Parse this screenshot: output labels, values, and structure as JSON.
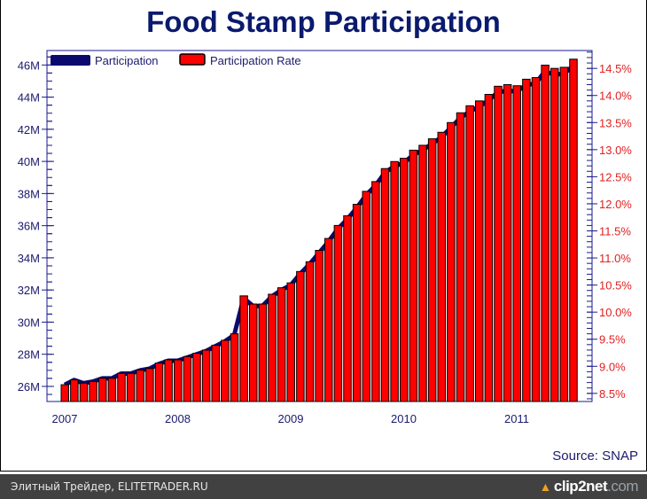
{
  "chart_data": {
    "type": "bar",
    "title": "Food Stamp Participation",
    "source": "Source: SNAP",
    "x_tick_labels": [
      "2007",
      "2008",
      "2009",
      "2010",
      "2011"
    ],
    "x_start": "2007-01",
    "x_interval": "monthly",
    "left_axis": {
      "label": "Participation",
      "ylim": [
        25.06,
        46.9
      ],
      "ticks": [
        26,
        28,
        30,
        32,
        34,
        36,
        38,
        40,
        42,
        44,
        46
      ],
      "tick_labels": [
        "26M",
        "28M",
        "30M",
        "32M",
        "34M",
        "36M",
        "38M",
        "40M",
        "42M",
        "44M",
        "46M"
      ]
    },
    "right_axis": {
      "label": "Participation Rate",
      "ylim": [
        8.35,
        14.83
      ],
      "ticks": [
        8.5,
        9,
        9.5,
        10,
        10.5,
        11,
        11.5,
        12,
        12.5,
        13,
        13.5,
        14,
        14.5
      ],
      "tick_labels": [
        "8.5%",
        "9.0%",
        "9.5%",
        "10.0%",
        "10.5%",
        "11.0%",
        "11.5%",
        "12.0%",
        "12.5%",
        "13.0%",
        "13.5%",
        "14.0%",
        "14.5%"
      ]
    },
    "legend": {
      "placement": "top-left",
      "entries": [
        "Participation",
        "Participation Rate"
      ]
    },
    "series": [
      {
        "name": "Participation",
        "type": "line",
        "axis": "left",
        "unit": "millions",
        "color": "#0a0a6e",
        "values": [
          26.1,
          26.4,
          26.2,
          26.3,
          26.5,
          26.5,
          26.8,
          26.8,
          27.0,
          27.1,
          27.4,
          27.6,
          27.6,
          27.8,
          28.0,
          28.2,
          28.5,
          28.8,
          29.2,
          31.5,
          31.0,
          31.0,
          31.6,
          32.0,
          32.3,
          33.0,
          33.6,
          34.3,
          35.0,
          35.8,
          36.4,
          37.1,
          37.9,
          38.5,
          39.3,
          39.7,
          39.9,
          40.4,
          40.7,
          41.1,
          41.5,
          42.1,
          42.7,
          43.1,
          43.4,
          43.8,
          44.3,
          44.4,
          44.35,
          44.75,
          44.85,
          45.6,
          45.4,
          45.45,
          45.95
        ]
      },
      {
        "name": "Participation Rate",
        "type": "bar",
        "axis": "right",
        "unit": "percent",
        "color": "#ff0000",
        "values": [
          8.66,
          8.75,
          8.69,
          8.72,
          8.78,
          8.78,
          8.87,
          8.87,
          8.93,
          8.96,
          9.06,
          9.12,
          9.12,
          9.18,
          9.24,
          9.3,
          9.39,
          9.48,
          9.6,
          10.3,
          10.15,
          10.15,
          10.33,
          10.45,
          10.54,
          10.75,
          10.93,
          11.14,
          11.36,
          11.6,
          11.78,
          11.99,
          12.23,
          12.41,
          12.65,
          12.78,
          12.84,
          12.99,
          13.08,
          13.2,
          13.32,
          13.5,
          13.68,
          13.81,
          13.9,
          14.02,
          14.17,
          14.2,
          14.18,
          14.3,
          14.33,
          14.56,
          14.5,
          14.52,
          14.67
        ]
      }
    ]
  },
  "footer": {
    "text": "Элитный Трейдер, ELITETRADER.RU",
    "brand_main": "clip2net",
    "brand_suffix": ".com"
  }
}
